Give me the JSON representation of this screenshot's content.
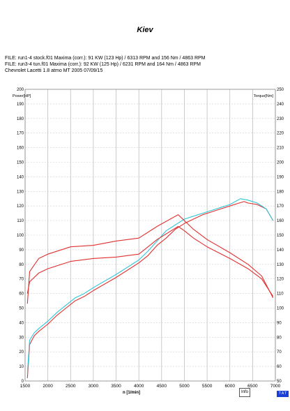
{
  "header": {
    "title": "Kiev",
    "file_lines": [
      "FILE: run1-4 stock.f01  Maxima (corr.):  91 KW (123 Hp) /  6313 RPM  and   156 Nm /  4863 RPM",
      "FILE: run3-4 tun.f01  Maxima (corr.):  92 KW (125 Hp) /  6231 RPM  and   164 Nm /  4863 RPM",
      "Chevrolet Lacetti 1.8 atmo MT 2005 07/09/15"
    ]
  },
  "buttons": {
    "info": "Info",
    "tat": "T A T"
  },
  "colors": {
    "stock": "#e03030",
    "tuned": "#2cc6d8",
    "grid": "#b5b5b5"
  },
  "chart_data": {
    "type": "line",
    "xlabel": "n  [1/min]",
    "ylabel_left": "Power[HP]",
    "ylabel_right": "Torque[Nm]",
    "xlim": [
      1500,
      7000
    ],
    "ylim_left": [
      0,
      200
    ],
    "ylim_right": [
      50,
      250
    ],
    "x_ticks": [
      1500,
      2000,
      2500,
      3000,
      3500,
      4000,
      4500,
      5000,
      5500,
      6000,
      6500,
      7000
    ],
    "y_left_ticks": [
      0,
      10,
      20,
      30,
      40,
      50,
      60,
      70,
      80,
      90,
      100,
      110,
      120,
      130,
      140,
      150,
      160,
      170,
      180,
      190,
      200
    ],
    "y_right_ticks": [
      50,
      60,
      70,
      80,
      90,
      100,
      110,
      120,
      130,
      140,
      150,
      160,
      170,
      180,
      190,
      200,
      210,
      220,
      230,
      240,
      250
    ],
    "grid": true,
    "series": [
      {
        "key": "power_stock",
        "colorKey": "stock",
        "axis": "left",
        "x": [
          1550,
          1600,
          1700,
          1800,
          2000,
          2200,
          2400,
          2600,
          2800,
          3000,
          3500,
          4000,
          4200,
          4400,
          4600,
          4800,
          5000,
          5200,
          5400,
          5600,
          5800,
          6000,
          6200,
          6313,
          6400,
          6600,
          6800,
          6950
        ],
        "y": [
          2,
          25,
          31,
          34,
          39,
          45,
          50,
          55,
          58,
          62,
          71,
          81,
          86,
          93,
          98,
          104,
          108,
          111,
          114,
          116,
          118,
          120,
          122,
          123,
          122,
          121,
          118,
          110
        ]
      },
      {
        "key": "power_tuned",
        "colorKey": "tuned",
        "axis": "left",
        "x": [
          1550,
          1600,
          1700,
          1800,
          2000,
          2200,
          2400,
          2600,
          2800,
          3000,
          3500,
          4000,
          4200,
          4400,
          4600,
          4800,
          5000,
          5200,
          5400,
          5600,
          5800,
          6000,
          6231,
          6400,
          6600,
          6800,
          6950
        ],
        "y": [
          5,
          28,
          33,
          36,
          41,
          47,
          52,
          57,
          60,
          64,
          73,
          83,
          89,
          96,
          103,
          107,
          111,
          113,
          115,
          117,
          119,
          121,
          125,
          124,
          122,
          118,
          110
        ]
      },
      {
        "key": "torque_stock",
        "colorKey": "stock",
        "axis": "right",
        "x": [
          1550,
          1600,
          1800,
          2000,
          2500,
          3000,
          3500,
          4000,
          4400,
          4863,
          5000,
          5200,
          5500,
          6000,
          6400,
          6700,
          6950
        ],
        "y": [
          110,
          118,
          124,
          127,
          132,
          134,
          135,
          137,
          147,
          156,
          153,
          148,
          142,
          134,
          127,
          120,
          108
        ]
      },
      {
        "key": "torque_tuned",
        "colorKey": "stock",
        "axis": "right",
        "x": [
          1550,
          1600,
          1800,
          2000,
          2500,
          3000,
          3500,
          4000,
          4400,
          4863,
          5000,
          5200,
          5500,
          6000,
          6400,
          6700,
          6950
        ],
        "y": [
          103,
          125,
          134,
          137,
          142,
          143,
          146,
          148,
          156,
          164,
          160,
          154,
          147,
          138,
          130,
          122,
          107
        ]
      }
    ]
  }
}
